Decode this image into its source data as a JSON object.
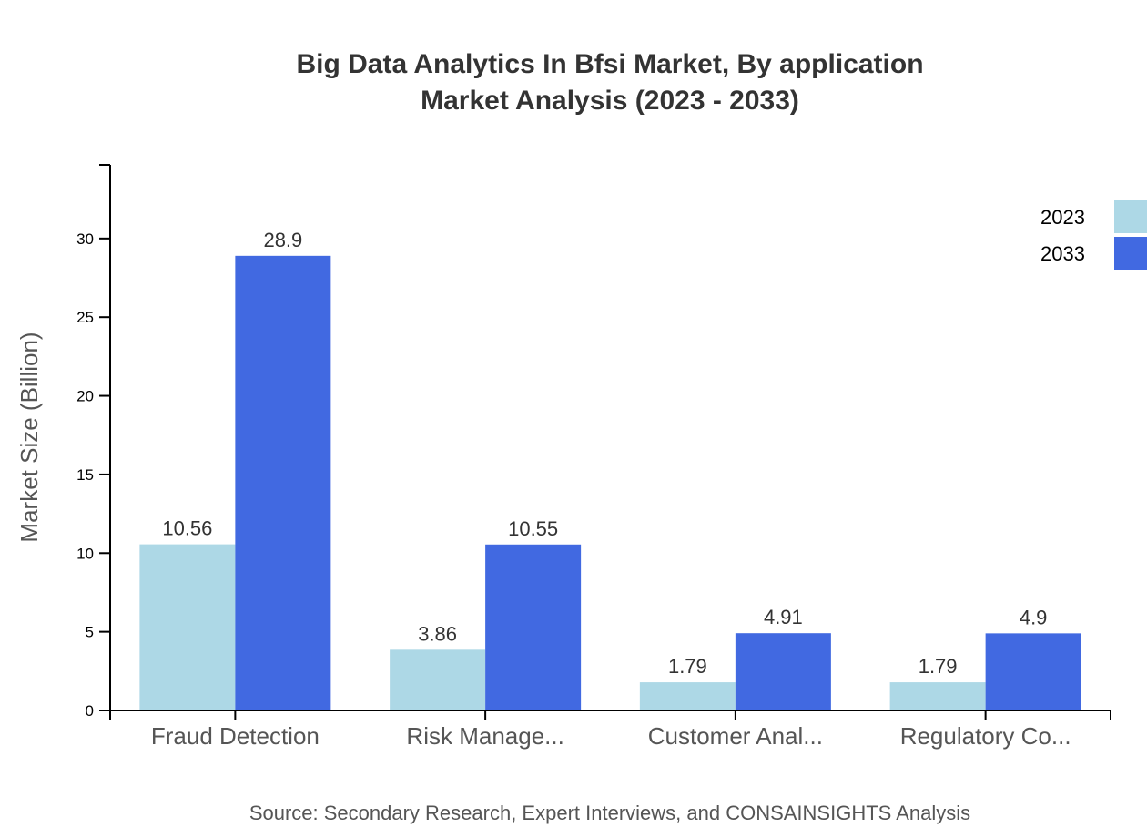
{
  "chart_data": {
    "type": "bar",
    "title_lines": [
      "Big Data Analytics In Bfsi Market, By application",
      "Market Analysis (2023 - 2033)"
    ],
    "xlabel": "",
    "ylabel": "Market Size (Billion)",
    "categories": [
      "Fraud Detection",
      "Risk Manage...",
      "Customer Anal...",
      "Regulatory Co..."
    ],
    "series": [
      {
        "name": "2023",
        "color": "#add8e6",
        "values": [
          10.56,
          3.86,
          1.79,
          1.79
        ]
      },
      {
        "name": "2033",
        "color": "#4169e1",
        "values": [
          28.9,
          10.55,
          4.91,
          4.9
        ]
      }
    ],
    "ylim": [
      0,
      34.68
    ],
    "yticks": [
      0,
      5,
      10,
      15,
      20,
      25,
      30
    ],
    "grid": false,
    "legend": "top-right",
    "source": "Source: Secondary Research, Expert Interviews, and CONSAINSIGHTS Analysis"
  }
}
